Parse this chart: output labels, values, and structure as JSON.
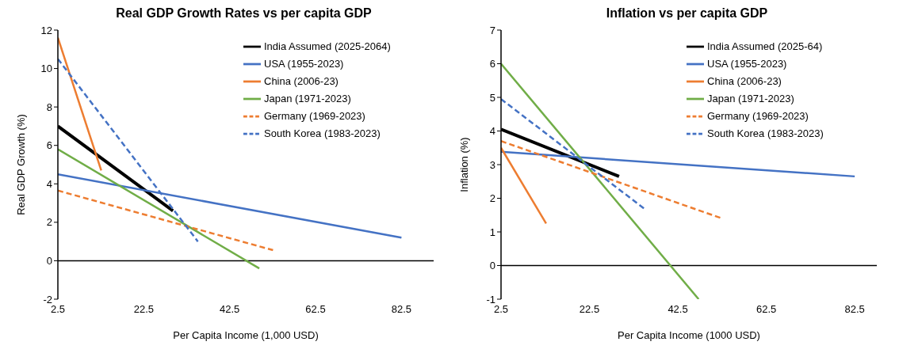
{
  "chart_data": [
    {
      "type": "line",
      "title": "Real GDP Growth Rates vs per capita GDP",
      "xlabel": "Per Capita Income (1,000 USD)",
      "ylabel": "Real GDP Growth (%)",
      "xlim": [
        2.5,
        90
      ],
      "xticks": [
        2.5,
        22.5,
        42.5,
        62.5,
        82.5
      ],
      "ylim": [
        -2,
        12
      ],
      "yticks": [
        -2,
        0,
        2,
        4,
        6,
        8,
        10,
        12
      ],
      "grid": false,
      "legend": "top right",
      "marker": "none",
      "ref_lines": [
        {
          "axis": "y",
          "value": 0,
          "color": "#000000"
        }
      ],
      "series": [
        {
          "name": "India Assumed (2025-2064)",
          "color": "#000000",
          "line_style": "solid",
          "x": [
            2.5,
            29.3
          ],
          "values": [
            7.0,
            2.6
          ]
        },
        {
          "name": "USA (1955-2023)",
          "color": "#4472c4",
          "line_style": "solid",
          "x": [
            2.5,
            82.5
          ],
          "values": [
            4.5,
            1.2
          ]
        },
        {
          "name": "China (2006-23)",
          "color": "#ed7d31",
          "line_style": "solid",
          "x": [
            2.5,
            12.6
          ],
          "values": [
            11.6,
            4.7
          ]
        },
        {
          "name": "Japan (1971-2023)",
          "color": "#70ad47",
          "line_style": "solid",
          "x": [
            2.5,
            49.4
          ],
          "values": [
            5.8,
            -0.4
          ]
        },
        {
          "name": "Germany (1969-2023)",
          "color": "#ed7d31",
          "line_style": "dashed",
          "x": [
            2.5,
            52.6
          ],
          "values": [
            3.65,
            0.55
          ]
        },
        {
          "name": "South Korea (1983-2023)",
          "color": "#4472c4",
          "line_style": "dashed",
          "x": [
            2.5,
            35.1
          ],
          "values": [
            10.5,
            1.0
          ]
        }
      ]
    },
    {
      "type": "line",
      "title": "Inflation vs per capita GDP",
      "xlabel": "Per Capita Income (1000 USD)",
      "ylabel": "Inflation (%)",
      "xlim": [
        2.5,
        87.5
      ],
      "xticks": [
        2.5,
        22.5,
        42.5,
        62.5,
        82.5
      ],
      "ylim": [
        -1,
        7
      ],
      "yticks": [
        -1,
        0,
        1,
        2,
        3,
        4,
        5,
        6,
        7
      ],
      "grid": false,
      "legend": "top right",
      "marker": "none",
      "ref_lines": [
        {
          "axis": "y",
          "value": 0,
          "color": "#000000"
        }
      ],
      "series": [
        {
          "name": "India Assumed (2025-64)",
          "color": "#000000",
          "line_style": "solid",
          "x": [
            2.5,
            29.2
          ],
          "values": [
            4.05,
            2.65
          ]
        },
        {
          "name": "USA (1955-2023)",
          "color": "#4472c4",
          "line_style": "solid",
          "x": [
            2.5,
            82.5
          ],
          "values": [
            3.38,
            2.65
          ]
        },
        {
          "name": "China (2006-23)",
          "color": "#ed7d31",
          "line_style": "solid",
          "x": [
            2.5,
            12.7
          ],
          "values": [
            3.5,
            1.25
          ]
        },
        {
          "name": "Japan (1971-2023)",
          "color": "#70ad47",
          "line_style": "solid",
          "x": [
            2.5,
            47.2
          ],
          "values": [
            6.0,
            -1.0
          ]
        },
        {
          "name": "Germany (1969-2023)",
          "color": "#ed7d31",
          "line_style": "dashed",
          "x": [
            2.5,
            52.5
          ],
          "values": [
            3.7,
            1.4
          ]
        },
        {
          "name": "South Korea (1983-2023)",
          "color": "#4472c4",
          "line_style": "dashed",
          "x": [
            2.5,
            35.3
          ],
          "values": [
            4.95,
            1.65
          ]
        }
      ]
    }
  ]
}
